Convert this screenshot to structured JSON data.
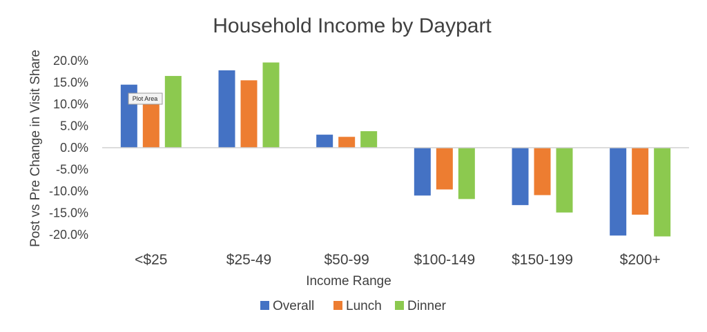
{
  "tooltip": {
    "text": "Plot Area"
  },
  "chart_data": {
    "type": "bar",
    "title": "Household Income by Daypart",
    "xlabel": "Income Range",
    "ylabel": "Post vs Pre Change in Visit Share",
    "categories": [
      "<$25",
      "$25-49",
      "$50-99",
      "$100-149",
      "$150-199",
      "$200+"
    ],
    "series": [
      {
        "name": "Overall",
        "color": "#4472C4",
        "values": [
          14.5,
          17.8,
          3.0,
          -11.0,
          -13.2,
          -20.2
        ]
      },
      {
        "name": "Lunch",
        "color": "#ED7D31",
        "values": [
          11.0,
          15.5,
          2.5,
          -9.6,
          -10.9,
          -15.4
        ]
      },
      {
        "name": "Dinner",
        "color": "#8CC94F",
        "values": [
          16.5,
          19.6,
          3.8,
          -11.8,
          -14.9,
          -20.4
        ]
      }
    ],
    "ylim": [
      -20,
      20
    ],
    "yticks": [
      20,
      15,
      10,
      5,
      0,
      -5,
      -10,
      -15,
      -20
    ],
    "ytick_labels": [
      "20.0%",
      "15.0%",
      "10.0%",
      "5.0%",
      "0.0%",
      "-5.0%",
      "-10.0%",
      "-15.0%",
      "-20.0%"
    ],
    "grid": false,
    "legend": "bottom"
  }
}
